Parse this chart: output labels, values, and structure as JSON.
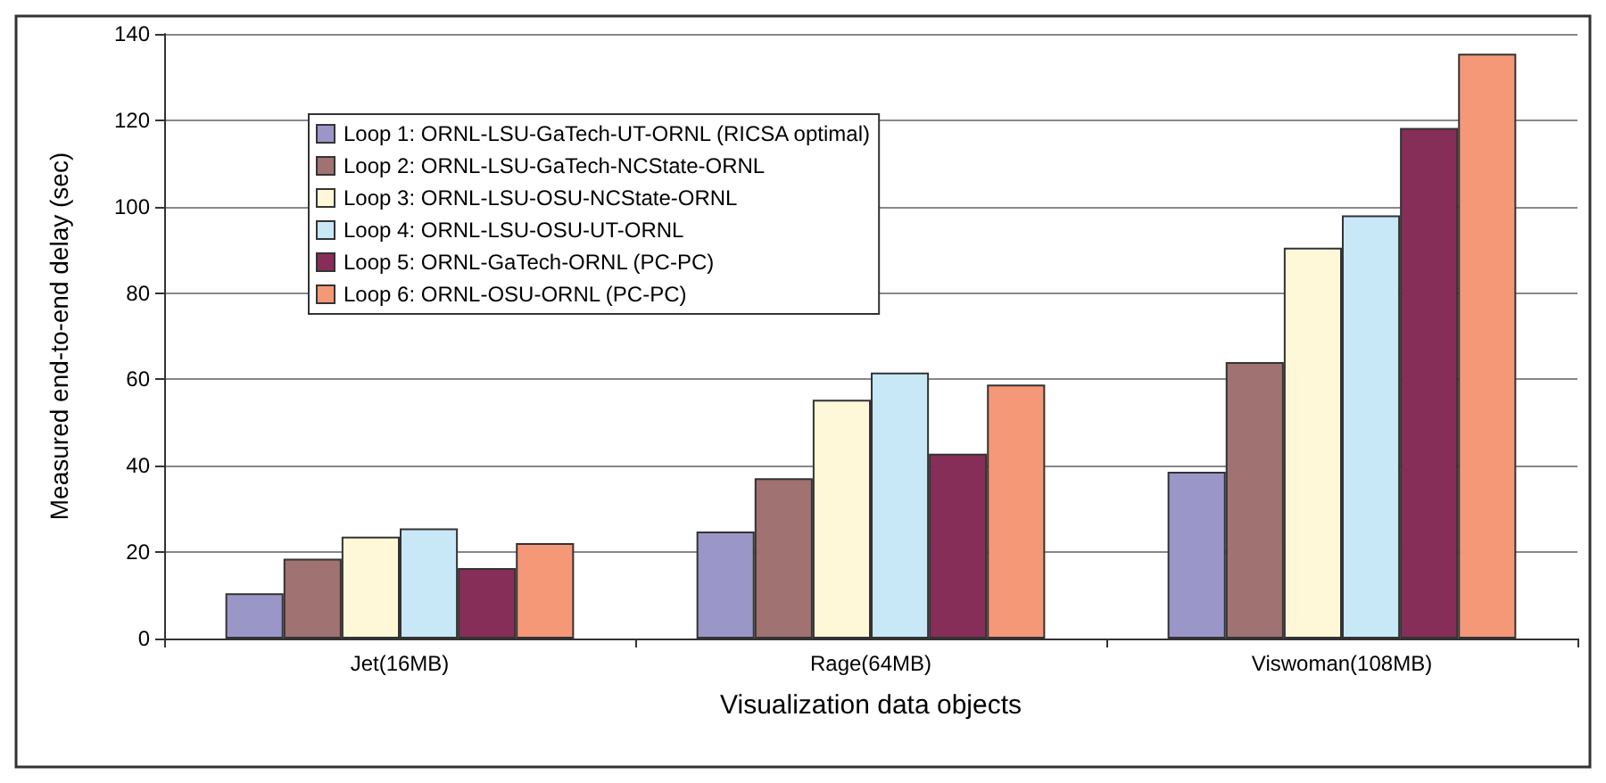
{
  "chart_data": {
    "type": "bar",
    "xlabel": "Visualization data objects",
    "ylabel": "Measured end-to-end delay (sec)",
    "categories": [
      "Jet(16MB)",
      "Rage(64MB)",
      "Viswoman(108MB)"
    ],
    "series": [
      {
        "name": "Loop 1: ORNL-LSU-GaTech-UT-ORNL (RICSA optimal)",
        "color": "#9b96c8",
        "values": [
          10.5,
          24.8,
          38.6
        ]
      },
      {
        "name": "Loop 2: ORNL-LSU-GaTech-NCState-ORNL",
        "color": "#a07272",
        "values": [
          18.5,
          37.1,
          64
        ]
      },
      {
        "name": "Loop 3: ORNL-LSU-OSU-NCState-ORNL",
        "color": "#fff8d8",
        "values": [
          23.6,
          55.3,
          90.5
        ]
      },
      {
        "name": "Loop 4: ORNL-LSU-OSU-UT-ORNL",
        "color": "#c8e8f8",
        "values": [
          25.5,
          61.6,
          98
        ]
      },
      {
        "name": "Loop 5: ORNL-GaTech-ORNL (PC-PC)",
        "color": "#862e58",
        "values": [
          16.3,
          42.8,
          118.2
        ]
      },
      {
        "name": "Loop 6: ORNL-OSU-ORNL (PC-PC)",
        "color": "#f59878",
        "values": [
          22.1,
          58.8,
          135.4
        ]
      }
    ],
    "ylim": [
      0,
      140
    ],
    "yticks": [
      0,
      20,
      40,
      60,
      80,
      100,
      120,
      140
    ],
    "grid": "y",
    "legend": "top left"
  }
}
